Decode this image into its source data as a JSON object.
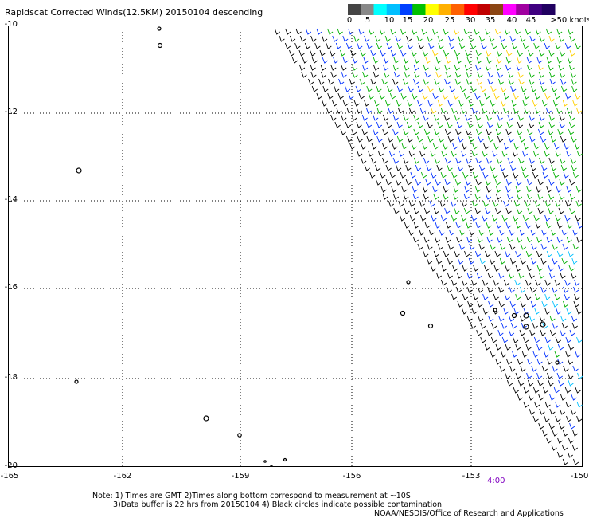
{
  "title": "Rapidscat Corrected Winds(12.5KM) 20150104 descending",
  "colorbar": {
    "swatches": [
      "#444444",
      "#888888",
      "#00ffff",
      "#00bfff",
      "#0040ff",
      "#00c000",
      "#ffff00",
      "#ffb000",
      "#ff6000",
      "#ff0000",
      "#c00000",
      "#8b4513",
      "#ff00ff",
      "#a000a0",
      "#400080",
      "#200060"
    ],
    "labels": [
      "0",
      "5",
      "10",
      "15",
      "20",
      "25",
      "30",
      "35",
      "40",
      "45",
      ">50 knots"
    ]
  },
  "y_ticks": [
    "-10",
    "-12",
    "-14",
    "-16",
    "-18",
    "-20"
  ],
  "x_ticks": [
    "-165",
    "-162",
    "-159",
    "-156",
    "-153",
    "-150"
  ],
  "time_label": "4:00",
  "time_color": "#8000c0",
  "notes": {
    "line1": "Note: 1) Times are GMT 2)Times along bottom correspond to measurement at ~10S",
    "line2": "3)Data buffer is 22 hrs from 20150104 4) Black circles indicate possible contamination",
    "line3": "NOAA/NESDIS/Office of Research and Applications"
  }
}
